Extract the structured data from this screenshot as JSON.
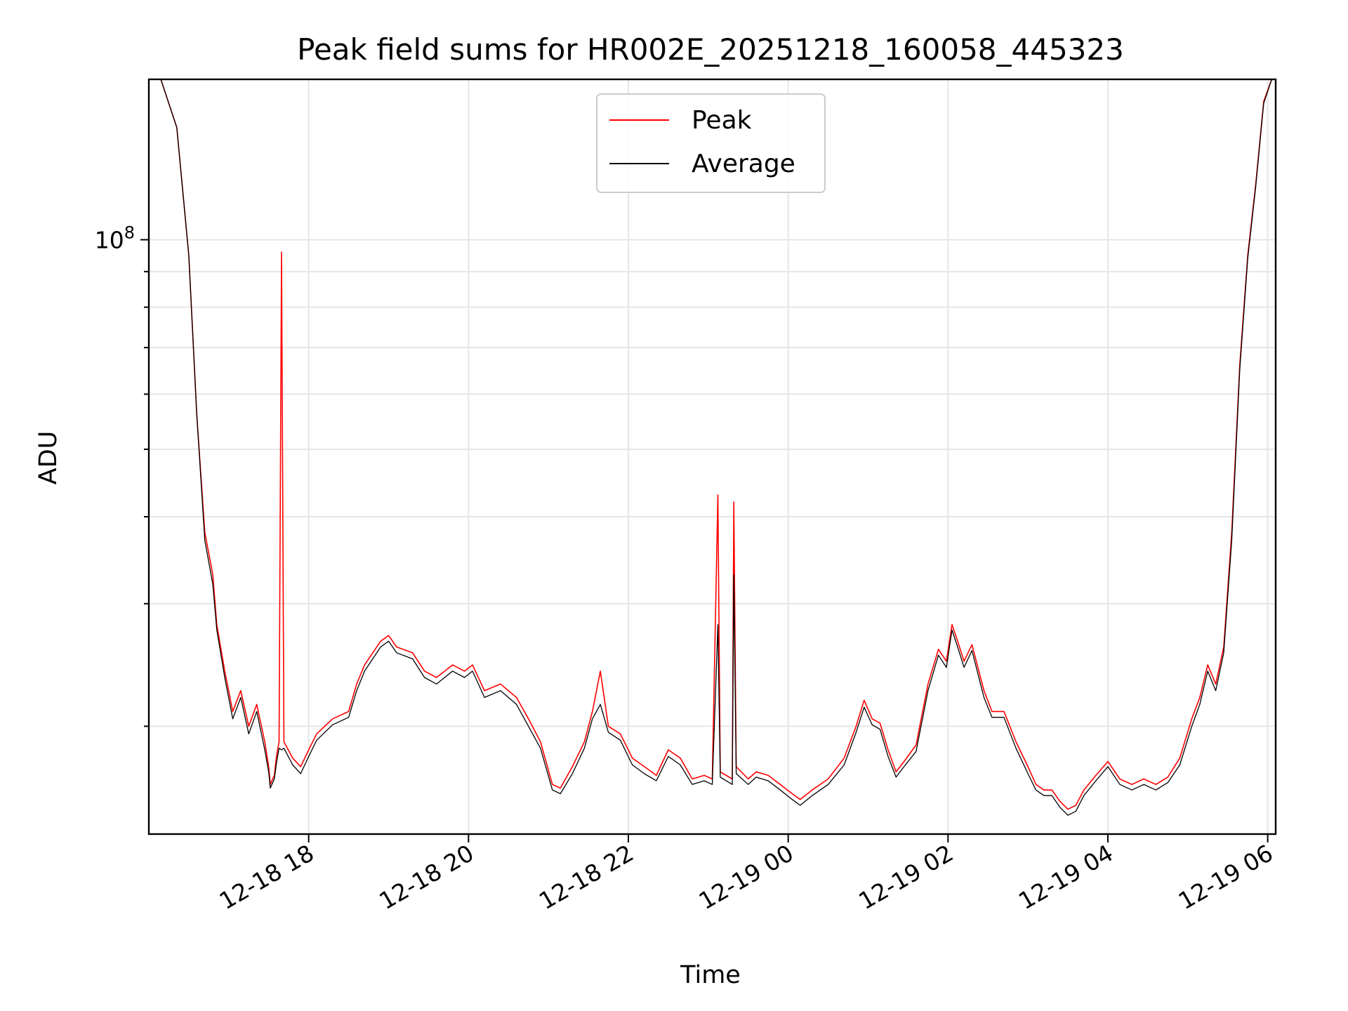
{
  "chart_data": {
    "type": "line",
    "title": "Peak field sums for HR002E_20251218_160058_445323",
    "xlabel": "Time",
    "ylabel": "ADU",
    "yscale": "log",
    "ylim": [
      14000000,
      170000000
    ],
    "xlim_hours": [
      16.0,
      30.1
    ],
    "grid": true,
    "legend_position": "upper-center",
    "x_ticks": [
      {
        "hour": 18,
        "label": "12-18 18"
      },
      {
        "hour": 20,
        "label": "12-18 20"
      },
      {
        "hour": 22,
        "label": "12-18 22"
      },
      {
        "hour": 24,
        "label": "12-19 00"
      },
      {
        "hour": 26,
        "label": "12-19 02"
      },
      {
        "hour": 28,
        "label": "12-19 04"
      },
      {
        "hour": 30,
        "label": "12-19 06"
      }
    ],
    "y_major_ticks": [
      {
        "value": 100000000,
        "base": "10",
        "exp": "8"
      }
    ],
    "y_minor_ticks": [
      20000000,
      30000000,
      40000000,
      50000000,
      60000000,
      70000000,
      80000000,
      90000000
    ],
    "series": [
      {
        "name": "Peak",
        "color": "#ff0000",
        "points": [
          [
            16.15,
            170000000
          ],
          [
            16.35,
            145000000
          ],
          [
            16.5,
            95000000
          ],
          [
            16.6,
            56000000
          ],
          [
            16.7,
            38000000
          ],
          [
            16.8,
            33000000
          ],
          [
            16.85,
            28000000
          ],
          [
            16.95,
            24000000
          ],
          [
            17.05,
            21000000
          ],
          [
            17.15,
            22500000
          ],
          [
            17.25,
            20000000
          ],
          [
            17.35,
            21500000
          ],
          [
            17.45,
            19000000
          ],
          [
            17.5,
            17500000
          ],
          [
            17.52,
            16500000
          ],
          [
            17.57,
            17000000
          ],
          [
            17.6,
            18200000
          ],
          [
            17.63,
            19000000
          ],
          [
            17.66,
            96000000
          ],
          [
            17.69,
            19000000
          ],
          [
            17.8,
            18000000
          ],
          [
            17.9,
            17500000
          ],
          [
            18.0,
            18500000
          ],
          [
            18.1,
            19500000
          ],
          [
            18.3,
            20500000
          ],
          [
            18.5,
            21000000
          ],
          [
            18.6,
            23000000
          ],
          [
            18.7,
            24500000
          ],
          [
            18.9,
            26500000
          ],
          [
            19.0,
            27000000
          ],
          [
            19.1,
            26000000
          ],
          [
            19.3,
            25500000
          ],
          [
            19.45,
            24000000
          ],
          [
            19.6,
            23500000
          ],
          [
            19.8,
            24500000
          ],
          [
            19.95,
            24000000
          ],
          [
            20.05,
            24500000
          ],
          [
            20.2,
            22500000
          ],
          [
            20.4,
            23000000
          ],
          [
            20.6,
            22000000
          ],
          [
            20.75,
            20500000
          ],
          [
            20.9,
            19000000
          ],
          [
            21.05,
            16500000
          ],
          [
            21.15,
            16300000
          ],
          [
            21.3,
            17500000
          ],
          [
            21.45,
            19000000
          ],
          [
            21.55,
            21000000
          ],
          [
            21.65,
            24000000
          ],
          [
            21.75,
            20000000
          ],
          [
            21.9,
            19500000
          ],
          [
            22.05,
            18000000
          ],
          [
            22.2,
            17500000
          ],
          [
            22.35,
            17000000
          ],
          [
            22.5,
            18500000
          ],
          [
            22.65,
            18000000
          ],
          [
            22.8,
            16800000
          ],
          [
            22.95,
            17000000
          ],
          [
            23.05,
            16800000
          ],
          [
            23.12,
            43000000
          ],
          [
            23.15,
            17200000
          ],
          [
            23.3,
            16800000
          ],
          [
            23.32,
            42000000
          ],
          [
            23.35,
            17500000
          ],
          [
            23.5,
            16800000
          ],
          [
            23.6,
            17200000
          ],
          [
            23.75,
            17000000
          ],
          [
            23.9,
            16500000
          ],
          [
            24.05,
            16000000
          ],
          [
            24.15,
            15700000
          ],
          [
            24.3,
            16200000
          ],
          [
            24.5,
            16800000
          ],
          [
            24.7,
            18000000
          ],
          [
            24.85,
            20000000
          ],
          [
            24.95,
            21800000
          ],
          [
            25.05,
            20500000
          ],
          [
            25.15,
            20200000
          ],
          [
            25.25,
            18500000
          ],
          [
            25.35,
            17200000
          ],
          [
            25.45,
            17800000
          ],
          [
            25.6,
            18800000
          ],
          [
            25.75,
            23000000
          ],
          [
            25.88,
            25800000
          ],
          [
            25.98,
            24800000
          ],
          [
            26.05,
            28000000
          ],
          [
            26.12,
            26500000
          ],
          [
            26.2,
            24800000
          ],
          [
            26.3,
            26200000
          ],
          [
            26.45,
            22500000
          ],
          [
            26.55,
            21000000
          ],
          [
            26.7,
            21000000
          ],
          [
            26.85,
            19000000
          ],
          [
            27.0,
            17500000
          ],
          [
            27.1,
            16500000
          ],
          [
            27.2,
            16200000
          ],
          [
            27.3,
            16200000
          ],
          [
            27.4,
            15600000
          ],
          [
            27.5,
            15200000
          ],
          [
            27.6,
            15400000
          ],
          [
            27.7,
            16200000
          ],
          [
            27.85,
            17000000
          ],
          [
            28.0,
            17800000
          ],
          [
            28.15,
            16800000
          ],
          [
            28.3,
            16500000
          ],
          [
            28.45,
            16800000
          ],
          [
            28.6,
            16500000
          ],
          [
            28.75,
            16900000
          ],
          [
            28.9,
            18000000
          ],
          [
            29.05,
            20500000
          ],
          [
            29.15,
            22000000
          ],
          [
            29.25,
            24500000
          ],
          [
            29.35,
            23000000
          ],
          [
            29.45,
            26000000
          ],
          [
            29.55,
            38000000
          ],
          [
            29.65,
            66000000
          ],
          [
            29.75,
            95000000
          ],
          [
            29.85,
            120000000
          ],
          [
            29.95,
            158000000
          ],
          [
            30.05,
            170000000
          ]
        ]
      },
      {
        "name": "Average",
        "color": "#000000",
        "points": [
          [
            16.15,
            170000000
          ],
          [
            16.35,
            145000000
          ],
          [
            16.5,
            95000000
          ],
          [
            16.6,
            56000000
          ],
          [
            16.7,
            37000000
          ],
          [
            16.8,
            32000000
          ],
          [
            16.85,
            27500000
          ],
          [
            16.95,
            23500000
          ],
          [
            17.05,
            20500000
          ],
          [
            17.15,
            22000000
          ],
          [
            17.25,
            19500000
          ],
          [
            17.35,
            21000000
          ],
          [
            17.45,
            18500000
          ],
          [
            17.5,
            17200000
          ],
          [
            17.52,
            16300000
          ],
          [
            17.57,
            16800000
          ],
          [
            17.6,
            17800000
          ],
          [
            17.63,
            18600000
          ],
          [
            17.66,
            18500000
          ],
          [
            17.69,
            18600000
          ],
          [
            17.8,
            17600000
          ],
          [
            17.9,
            17100000
          ],
          [
            18.0,
            18100000
          ],
          [
            18.1,
            19100000
          ],
          [
            18.3,
            20100000
          ],
          [
            18.5,
            20600000
          ],
          [
            18.6,
            22500000
          ],
          [
            18.7,
            24000000
          ],
          [
            18.9,
            26000000
          ],
          [
            19.0,
            26500000
          ],
          [
            19.1,
            25500000
          ],
          [
            19.3,
            25000000
          ],
          [
            19.45,
            23500000
          ],
          [
            19.6,
            23000000
          ],
          [
            19.8,
            24000000
          ],
          [
            19.95,
            23500000
          ],
          [
            20.05,
            24000000
          ],
          [
            20.2,
            22000000
          ],
          [
            20.4,
            22500000
          ],
          [
            20.6,
            21500000
          ],
          [
            20.75,
            20000000
          ],
          [
            20.9,
            18600000
          ],
          [
            21.05,
            16200000
          ],
          [
            21.15,
            16000000
          ],
          [
            21.3,
            17100000
          ],
          [
            21.45,
            18600000
          ],
          [
            21.55,
            20500000
          ],
          [
            21.65,
            21500000
          ],
          [
            21.75,
            19600000
          ],
          [
            21.9,
            19100000
          ],
          [
            22.05,
            17600000
          ],
          [
            22.2,
            17100000
          ],
          [
            22.35,
            16700000
          ],
          [
            22.5,
            18100000
          ],
          [
            22.65,
            17600000
          ],
          [
            22.8,
            16500000
          ],
          [
            22.95,
            16700000
          ],
          [
            23.05,
            16500000
          ],
          [
            23.12,
            28000000
          ],
          [
            23.15,
            16900000
          ],
          [
            23.3,
            16500000
          ],
          [
            23.32,
            33000000
          ],
          [
            23.35,
            17100000
          ],
          [
            23.5,
            16500000
          ],
          [
            23.6,
            16900000
          ],
          [
            23.75,
            16700000
          ],
          [
            23.9,
            16200000
          ],
          [
            24.05,
            15700000
          ],
          [
            24.15,
            15400000
          ],
          [
            24.3,
            15900000
          ],
          [
            24.5,
            16500000
          ],
          [
            24.7,
            17600000
          ],
          [
            24.85,
            19600000
          ],
          [
            24.95,
            21300000
          ],
          [
            25.05,
            20100000
          ],
          [
            25.15,
            19800000
          ],
          [
            25.25,
            18100000
          ],
          [
            25.35,
            16900000
          ],
          [
            25.45,
            17500000
          ],
          [
            25.6,
            18400000
          ],
          [
            25.75,
            22500000
          ],
          [
            25.88,
            25300000
          ],
          [
            25.98,
            24300000
          ],
          [
            26.05,
            27500000
          ],
          [
            26.12,
            26000000
          ],
          [
            26.2,
            24300000
          ],
          [
            26.3,
            25700000
          ],
          [
            26.45,
            22000000
          ],
          [
            26.55,
            20600000
          ],
          [
            26.7,
            20600000
          ],
          [
            26.85,
            18600000
          ],
          [
            27.0,
            17100000
          ],
          [
            27.1,
            16200000
          ],
          [
            27.2,
            15900000
          ],
          [
            27.3,
            15900000
          ],
          [
            27.4,
            15300000
          ],
          [
            27.5,
            14900000
          ],
          [
            27.6,
            15100000
          ],
          [
            27.7,
            15900000
          ],
          [
            27.85,
            16700000
          ],
          [
            28.0,
            17500000
          ],
          [
            28.15,
            16500000
          ],
          [
            28.3,
            16200000
          ],
          [
            28.45,
            16500000
          ],
          [
            28.6,
            16200000
          ],
          [
            28.75,
            16600000
          ],
          [
            28.9,
            17600000
          ],
          [
            29.05,
            20000000
          ],
          [
            29.15,
            21500000
          ],
          [
            29.25,
            24000000
          ],
          [
            29.35,
            22500000
          ],
          [
            29.45,
            25500000
          ],
          [
            29.55,
            37000000
          ],
          [
            29.65,
            65000000
          ],
          [
            29.75,
            94000000
          ],
          [
            29.85,
            119000000
          ],
          [
            29.95,
            157000000
          ],
          [
            30.05,
            170000000
          ]
        ]
      }
    ]
  }
}
